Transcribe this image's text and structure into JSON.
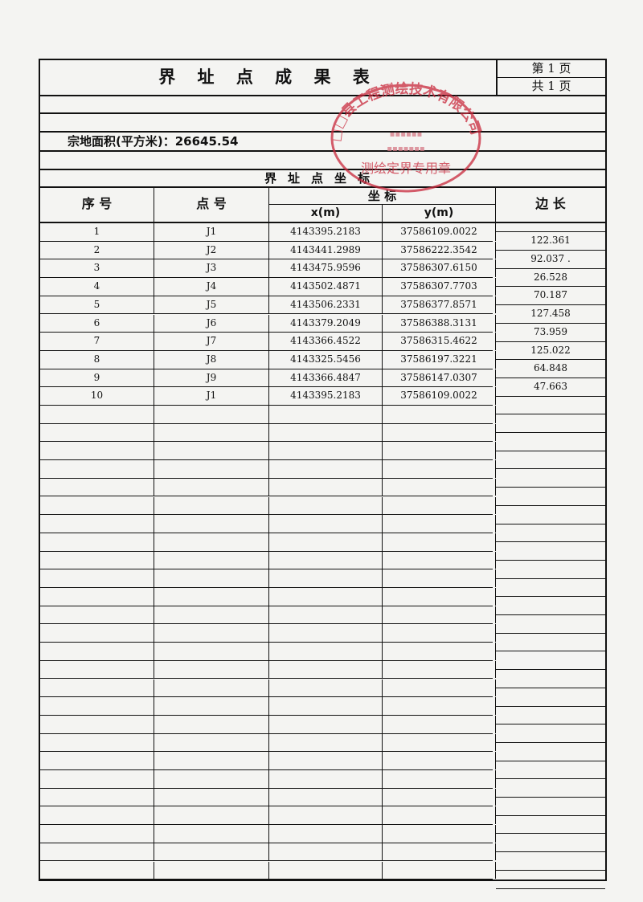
{
  "title": "界 址 点 成 果 表",
  "page_current": "第 1 页",
  "page_total": "共 1 页",
  "area_label": "宗地面积(平方米)：26645.54",
  "section_title": "界址点坐标",
  "headers": {
    "seq": "序 号",
    "point": "点 号",
    "coord": "坐 标",
    "x": "x(m)",
    "y": "y(m)",
    "edge": "边 长"
  },
  "rows": [
    {
      "seq": "1",
      "point": "J1",
      "x": "4143395.2183",
      "y": "37586109.0022"
    },
    {
      "seq": "2",
      "point": "J2",
      "x": "4143441.2989",
      "y": "37586222.3542"
    },
    {
      "seq": "3",
      "point": "J3",
      "x": "4143475.9596",
      "y": "37586307.6150"
    },
    {
      "seq": "4",
      "point": "J4",
      "x": "4143502.4871",
      "y": "37586307.7703"
    },
    {
      "seq": "5",
      "point": "J5",
      "x": "4143506.2331",
      "y": "37586377.8571"
    },
    {
      "seq": "6",
      "point": "J6",
      "x": "4143379.2049",
      "y": "37586388.3131"
    },
    {
      "seq": "7",
      "point": "J7",
      "x": "4143366.4522",
      "y": "37586315.4622"
    },
    {
      "seq": "8",
      "point": "J8",
      "x": "4143325.5456",
      "y": "37586197.3221"
    },
    {
      "seq": "9",
      "point": "J9",
      "x": "4143366.4847",
      "y": "37586147.0307"
    },
    {
      "seq": "10",
      "point": "J1",
      "x": "4143395.2183",
      "y": "37586109.0022"
    }
  ],
  "edges": [
    "122.361",
    "92.037 .",
    "26.528",
    "70.187",
    "127.458",
    "73.959",
    "125.022",
    "64.848",
    "47.663"
  ],
  "stamp": {
    "text": "测绘定界专用章",
    "color": "#c8283c"
  }
}
